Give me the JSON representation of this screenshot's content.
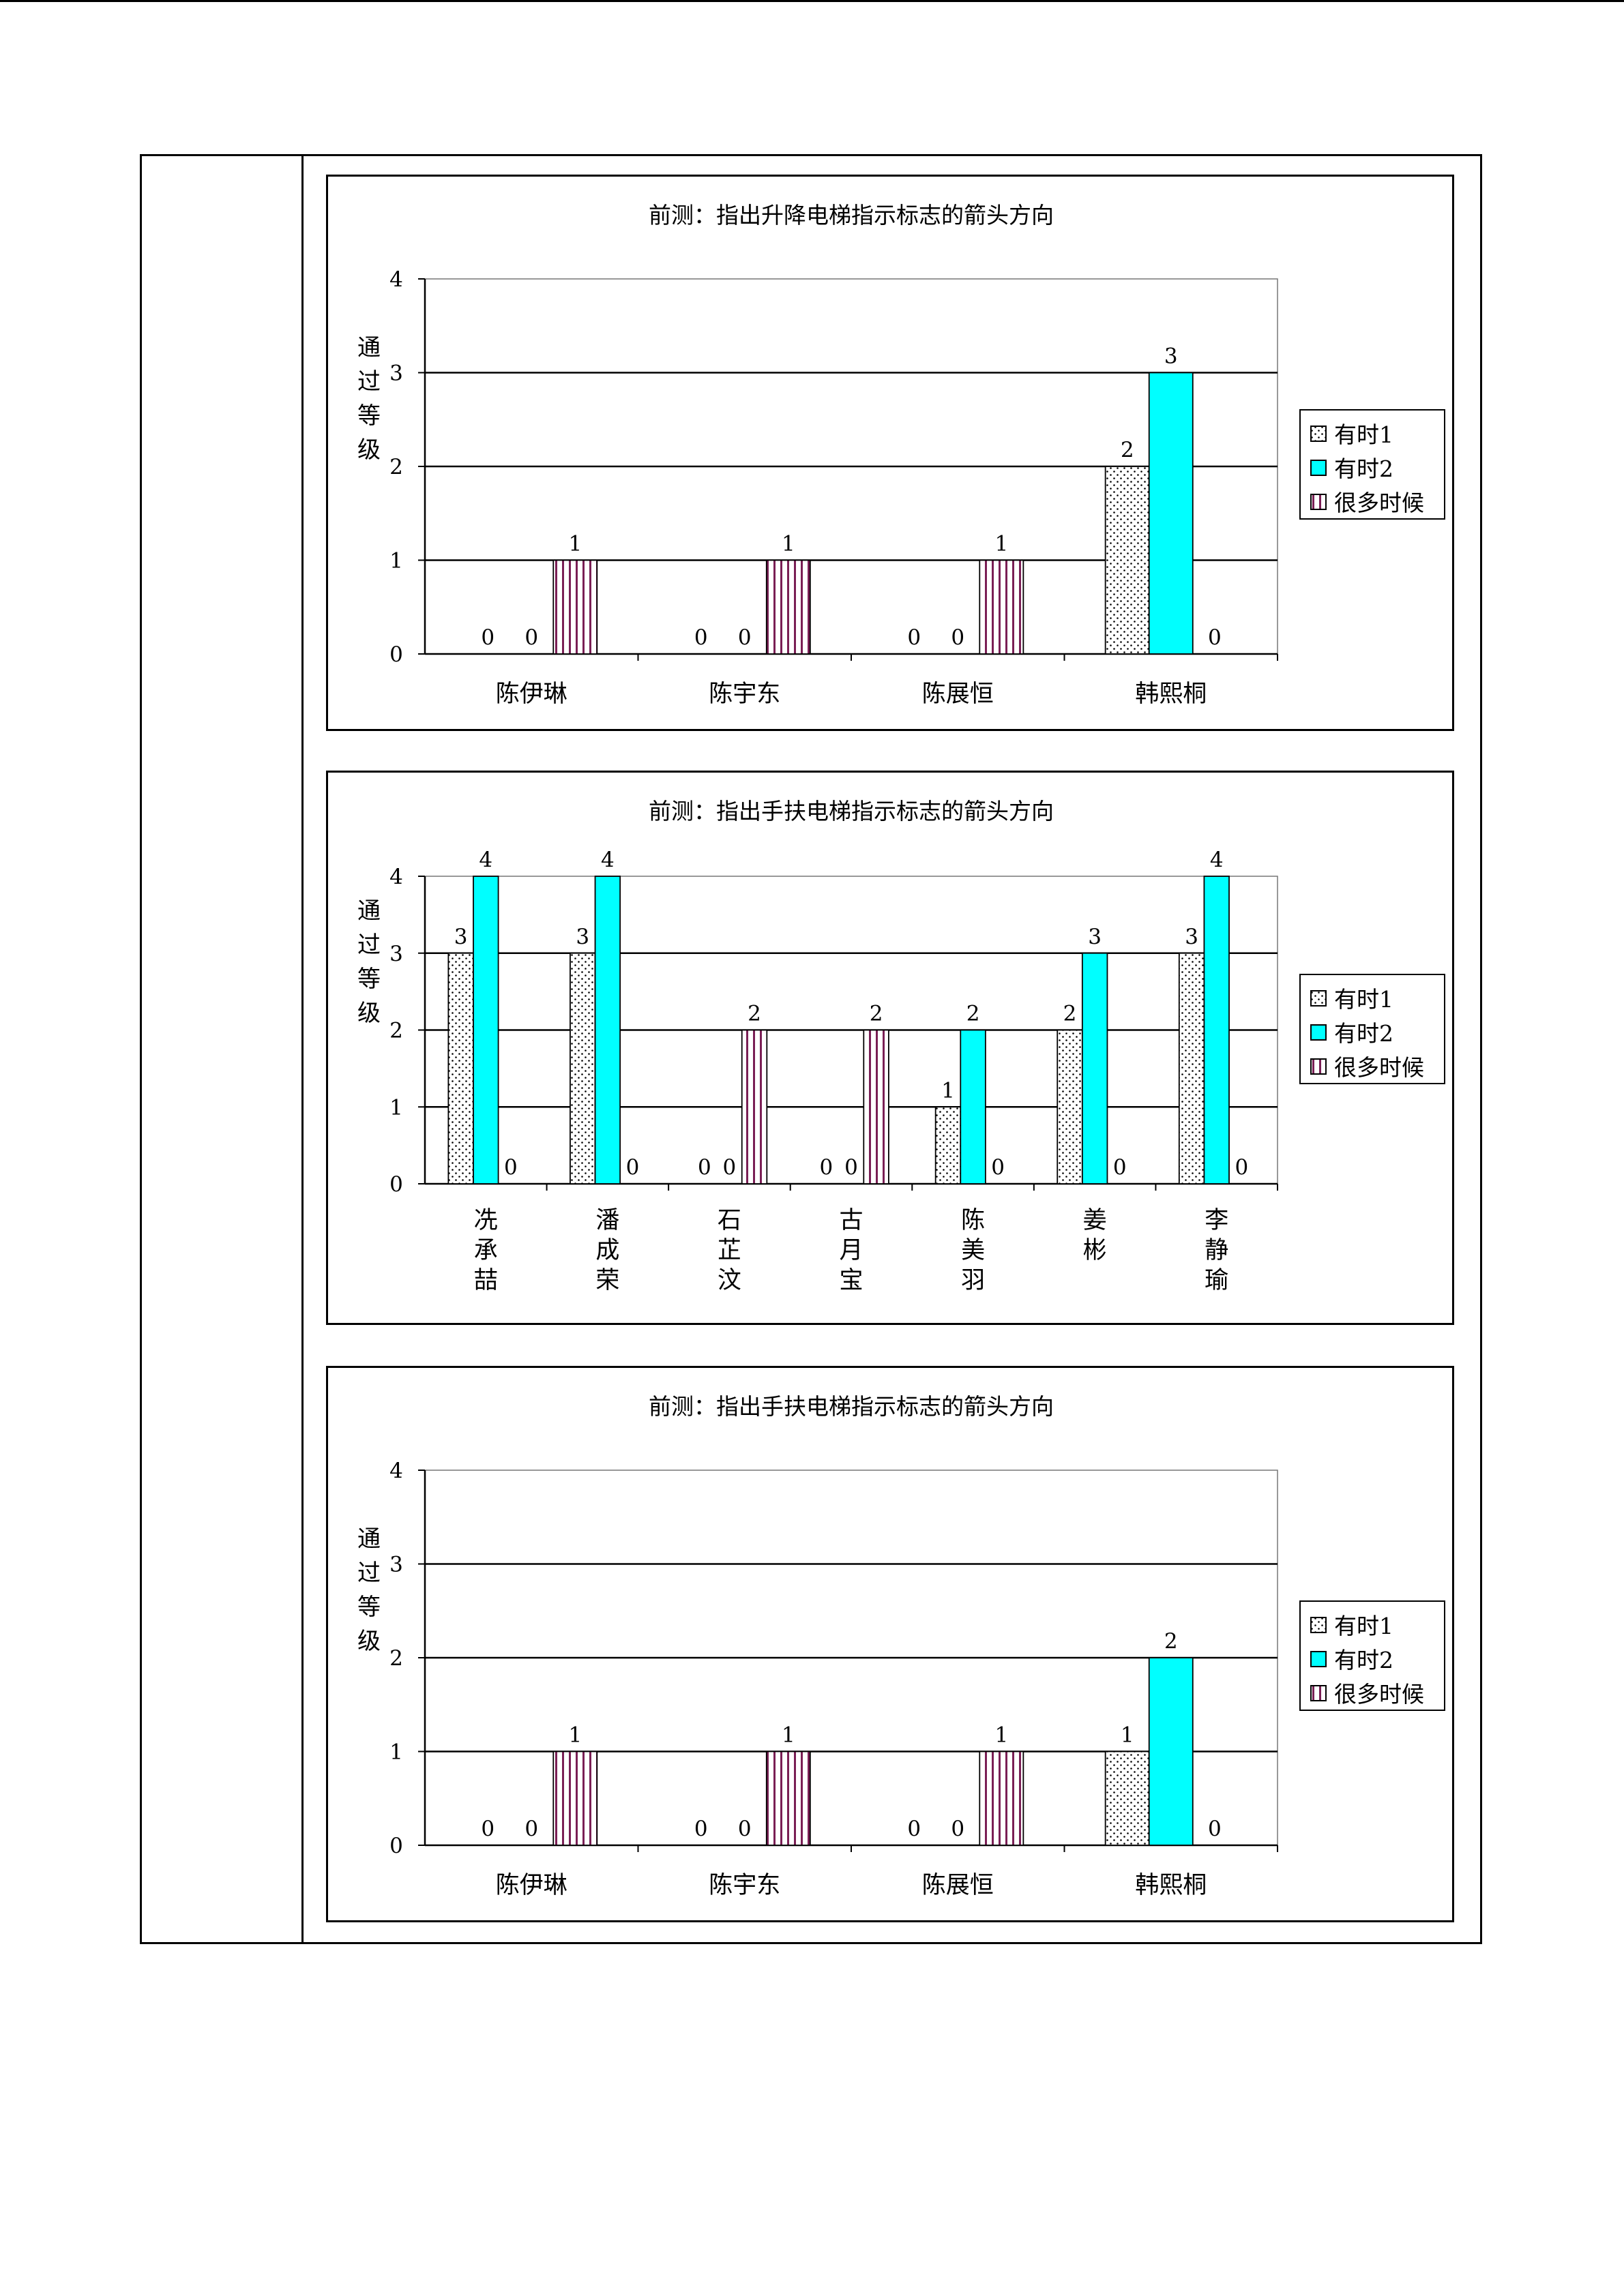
{
  "colors": {
    "series2_fill": "#00ffff",
    "stripe": "#7a1f55",
    "axis": "#000000"
  },
  "legend_icons": [
    "dotted-pattern-swatch",
    "cyan-solid-swatch",
    "vertical-stripe-swatch"
  ],
  "chart_data": [
    {
      "type": "bar",
      "title": "前测：指出升降电梯指示标志的箭头方向",
      "ylabel": "通过等级",
      "ylim": [
        0,
        4
      ],
      "yticks": [
        "0",
        "1",
        "2",
        "3",
        "4"
      ],
      "categories": [
        "陈伊琳",
        "陈宇东",
        "陈展恒",
        "韩熙桐"
      ],
      "series": [
        {
          "name": "有时1",
          "values": [
            0,
            0,
            0,
            2
          ]
        },
        {
          "name": "有时2",
          "values": [
            0,
            0,
            0,
            3
          ]
        },
        {
          "name": "很多时候",
          "values": [
            1,
            1,
            1,
            0
          ]
        }
      ],
      "grid": true,
      "legend": "right",
      "category_label_orientation": "horizontal"
    },
    {
      "type": "bar",
      "title": "前测：指出手扶电梯指示标志的箭头方向",
      "ylabel": "通过等级",
      "ylim": [
        0,
        4
      ],
      "yticks": [
        "0",
        "1",
        "2",
        "3",
        "4"
      ],
      "categories": [
        "冼承喆",
        "潘成荣",
        "石芷汶",
        "古月宝",
        "陈美羽",
        "姜彬",
        "李静瑜"
      ],
      "series": [
        {
          "name": "有时1",
          "values": [
            3,
            3,
            0,
            0,
            1,
            2,
            3
          ]
        },
        {
          "name": "有时2",
          "values": [
            4,
            4,
            0,
            0,
            2,
            3,
            4
          ]
        },
        {
          "name": "很多时候",
          "values": [
            0,
            0,
            2,
            2,
            0,
            0,
            0
          ]
        }
      ],
      "grid": true,
      "legend": "right",
      "category_label_orientation": "vertical"
    },
    {
      "type": "bar",
      "title": "前测：指出手扶电梯指示标志的箭头方向",
      "ylabel": "通过等级",
      "ylim": [
        0,
        4
      ],
      "yticks": [
        "0",
        "1",
        "2",
        "3",
        "4"
      ],
      "categories": [
        "陈伊琳",
        "陈宇东",
        "陈展恒",
        "韩熙桐"
      ],
      "series": [
        {
          "name": "有时1",
          "values": [
            0,
            0,
            0,
            1
          ]
        },
        {
          "name": "有时2",
          "values": [
            0,
            0,
            0,
            2
          ]
        },
        {
          "name": "很多时候",
          "values": [
            1,
            1,
            1,
            0
          ]
        }
      ],
      "grid": true,
      "legend": "right",
      "category_label_orientation": "horizontal"
    }
  ]
}
